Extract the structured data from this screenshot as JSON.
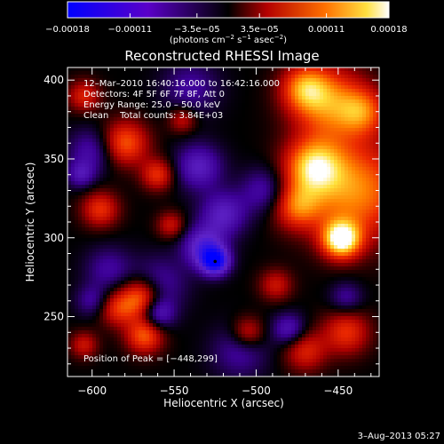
{
  "chart_data": {
    "type": "heatmap",
    "title": "Reconstructed RHESSI Image",
    "xlabel": "Heliocentric X (arcsec)",
    "ylabel": "Heliocentric Y (arcsec)",
    "xlim": [
      -615,
      -425
    ],
    "ylim": [
      212,
      408
    ],
    "x_ticks": [
      -600,
      -550,
      -500,
      -450
    ],
    "y_ticks": [
      250,
      300,
      350,
      400
    ],
    "x_tick_labels": [
      "−600",
      "−550",
      "−500",
      "−450"
    ],
    "y_tick_labels": [
      "250",
      "300",
      "350",
      "400"
    ],
    "colorbar": {
      "range": [
        -0.00018,
        0.00018
      ],
      "ticks": [
        -0.00018,
        -0.00011,
        -3.5e-05,
        3.5e-05,
        0.00011,
        0.00018
      ],
      "tick_labels": [
        "−0.00018",
        "−0.00011",
        "−3.5e−05",
        "3.5e−05",
        "0.00011",
        "0.00018"
      ],
      "units_main": "(photons cm",
      "units_sup1": "−2",
      "units_mid": " s",
      "units_sup2": "−1",
      "units_tail": " asec",
      "units_sup3": "−2",
      "units_close": ")"
    },
    "annotations": {
      "time_range": "12–Mar–2010 16:40:16.000 to 16:42:16.000",
      "detectors": "Detectors: 4F 5F 6F 7F 8F, Att 0",
      "energy_range": "Energy Range: 25.0 – 50.0 keV",
      "method_counts": "Clean    Total counts: 3.84E+03",
      "peak": "Position of Peak = [−448,299]"
    },
    "peak_position": [
      -448,
      299
    ],
    "blobs": [
      {
        "x": -448,
        "y": 299,
        "v": 0.00018,
        "s": 8
      },
      {
        "x": -440,
        "y": 330,
        "v": 0.00012,
        "s": 22
      },
      {
        "x": -465,
        "y": 345,
        "v": 0.00013,
        "s": 12
      },
      {
        "x": -455,
        "y": 385,
        "v": 0.00011,
        "s": 16
      },
      {
        "x": -470,
        "y": 395,
        "v": 0.0001,
        "s": 10
      },
      {
        "x": -435,
        "y": 380,
        "v": 8e-05,
        "s": 10
      },
      {
        "x": -475,
        "y": 320,
        "v": 9e-05,
        "s": 10
      },
      {
        "x": -445,
        "y": 240,
        "v": 8e-05,
        "s": 10
      },
      {
        "x": -470,
        "y": 228,
        "v": 7e-05,
        "s": 9
      },
      {
        "x": -570,
        "y": 262,
        "v": 0.00012,
        "s": 9
      },
      {
        "x": -568,
        "y": 238,
        "v": 0.0001,
        "s": 8
      },
      {
        "x": -585,
        "y": 255,
        "v": 7e-05,
        "s": 8
      },
      {
        "x": -605,
        "y": 232,
        "v": 6e-05,
        "s": 6
      },
      {
        "x": -580,
        "y": 360,
        "v": 0.0001,
        "s": 10
      },
      {
        "x": -560,
        "y": 340,
        "v": 8e-05,
        "s": 7
      },
      {
        "x": -595,
        "y": 318,
        "v": 8e-05,
        "s": 8
      },
      {
        "x": -605,
        "y": 390,
        "v": 7e-05,
        "s": 7
      },
      {
        "x": -545,
        "y": 375,
        "v": 6e-05,
        "s": 6
      },
      {
        "x": -552,
        "y": 308,
        "v": 6e-05,
        "s": 6
      },
      {
        "x": -505,
        "y": 240,
        "v": 7e-05,
        "s": 7
      },
      {
        "x": -488,
        "y": 270,
        "v": 6e-05,
        "s": 7
      },
      {
        "x": -525,
        "y": 285,
        "v": -0.00016,
        "s": 6
      },
      {
        "x": -532,
        "y": 294,
        "v": -0.0001,
        "s": 9
      },
      {
        "x": -520,
        "y": 315,
        "v": -8e-05,
        "s": 10
      },
      {
        "x": -535,
        "y": 345,
        "v": -8e-05,
        "s": 10
      },
      {
        "x": -560,
        "y": 270,
        "v": -6e-05,
        "s": 12
      },
      {
        "x": -590,
        "y": 280,
        "v": -5e-05,
        "s": 10
      },
      {
        "x": -600,
        "y": 355,
        "v": -6e-05,
        "s": 10
      },
      {
        "x": -560,
        "y": 252,
        "v": -8e-05,
        "s": 7
      },
      {
        "x": -510,
        "y": 228,
        "v": -5e-05,
        "s": 12
      },
      {
        "x": -480,
        "y": 242,
        "v": -7e-05,
        "s": 7
      },
      {
        "x": -495,
        "y": 330,
        "v": -6e-05,
        "s": 10
      },
      {
        "x": -540,
        "y": 395,
        "v": -5e-05,
        "s": 12
      },
      {
        "x": -607,
        "y": 340,
        "v": -6e-05,
        "s": 6
      },
      {
        "x": -600,
        "y": 260,
        "v": -5e-05,
        "s": 7
      },
      {
        "x": -445,
        "y": 262,
        "v": -5e-05,
        "s": 7
      }
    ]
  },
  "footer": {
    "date": "3–Aug–2013 05:27"
  }
}
